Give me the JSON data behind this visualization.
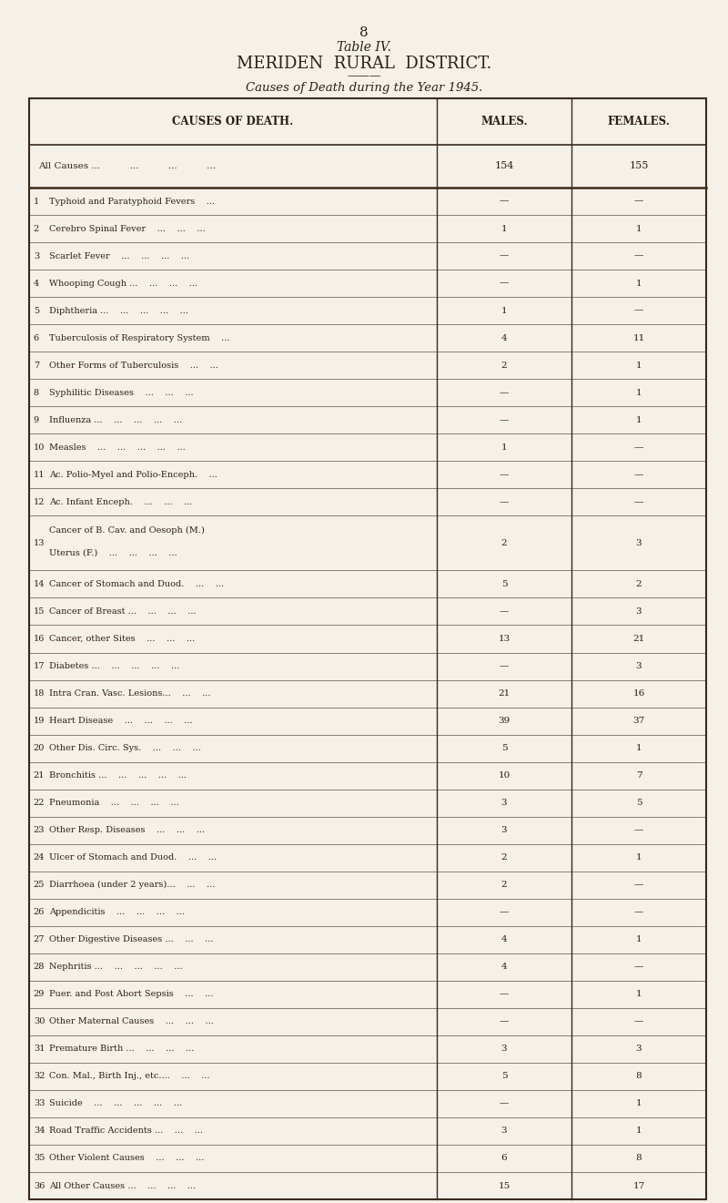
{
  "page_number": "8",
  "title_line1": "Table IV.",
  "title_line2": "MERIDEN  RURAL  DISTRICT.",
  "title_line3": "Causes of Death during the Year 1945.",
  "col_headers": [
    "CAUSES OF DEATH.",
    "MALES.",
    "FEMALES."
  ],
  "all_causes_label": "All Causes ...          ...          ...          ...",
  "all_causes_males": "154",
  "all_causes_females": "155",
  "rows": [
    {
      "num": "1",
      "cause": "Typhoid and Paratyphoid Fevers    ...",
      "males": "—",
      "females": "—"
    },
    {
      "num": "2",
      "cause": "Cerebro Spinal Fever    ...    ...    ...",
      "males": "1",
      "females": "1"
    },
    {
      "num": "3",
      "cause": "Scarlet Fever    ...    ...    ...    ...",
      "males": "—",
      "females": "—"
    },
    {
      "num": "4",
      "cause": "Whooping Cough ...    ...    ...    ...",
      "males": "—",
      "females": "1"
    },
    {
      "num": "5",
      "cause": "Diphtheria ...    ...    ...    ...    ...",
      "males": "1",
      "females": "—"
    },
    {
      "num": "6",
      "cause": "Tuberculosis of Respiratory System    ...",
      "males": "4",
      "females": "11"
    },
    {
      "num": "7",
      "cause": "Other Forms of Tuberculosis    ...    ...",
      "males": "2",
      "females": "1"
    },
    {
      "num": "8",
      "cause": "Syphilitic Diseases    ...    ...    ...",
      "males": "—",
      "females": "1"
    },
    {
      "num": "9",
      "cause": "Influenza ...    ...    ...    ...    ...",
      "males": "—",
      "females": "1"
    },
    {
      "num": "10",
      "cause": "Measles    ...    ...    ...    ...    ...",
      "males": "1",
      "females": "—"
    },
    {
      "num": "11",
      "cause": "Ac. Polio-Myel and Polio-Enceph.    ...",
      "males": "—",
      "females": "—"
    },
    {
      "num": "12",
      "cause": "Ac. Infant Enceph.    ...    ...    ...",
      "males": "—",
      "females": "—"
    },
    {
      "num": "13",
      "cause": "Cancer of B. Cav. and Oesoph (M.)\nUterus (F.)    ...    ...    ...    ...",
      "males": "2",
      "females": "3"
    },
    {
      "num": "14",
      "cause": "Cancer of Stomach and Duod.    ...    ...",
      "males": "5",
      "females": "2"
    },
    {
      "num": "15",
      "cause": "Cancer of Breast ...    ...    ...    ...",
      "males": "—",
      "females": "3"
    },
    {
      "num": "16",
      "cause": "Cancer, other Sites    ...    ...    ...",
      "males": "13",
      "females": "21"
    },
    {
      "num": "17",
      "cause": "Diabetes ...    ...    ...    ...    ...",
      "males": "—",
      "females": "3"
    },
    {
      "num": "18",
      "cause": "Intra Cran. Vasc. Lesions...    ...    ...",
      "males": "21",
      "females": "16"
    },
    {
      "num": "19",
      "cause": "Heart Disease    ...    ...    ...    ...",
      "males": "39",
      "females": "37"
    },
    {
      "num": "20",
      "cause": "Other Dis. Circ. Sys.    ...    ...    ...",
      "males": "5",
      "females": "1"
    },
    {
      "num": "21",
      "cause": "Bronchitis ...    ...    ...    ...    ...",
      "males": "10",
      "females": "7"
    },
    {
      "num": "22",
      "cause": "Pneumonia    ...    ...    ...    ...",
      "males": "3",
      "females": "5"
    },
    {
      "num": "23",
      "cause": "Other Resp. Diseases    ...    ...    ...",
      "males": "3",
      "females": "—"
    },
    {
      "num": "24",
      "cause": "Ulcer of Stomach and Duod.    ...    ...",
      "males": "2",
      "females": "1"
    },
    {
      "num": "25",
      "cause": "Diarrhoea (under 2 years)...    ...    ...",
      "males": "2",
      "females": "—"
    },
    {
      "num": "26",
      "cause": "Appendicitis    ...    ...    ...    ...",
      "males": "—",
      "females": "—"
    },
    {
      "num": "27",
      "cause": "Other Digestive Diseases ...    ...    ...",
      "males": "4",
      "females": "1"
    },
    {
      "num": "28",
      "cause": "Nephritis ...    ...    ...    ...    ...",
      "males": "4",
      "females": "—"
    },
    {
      "num": "29",
      "cause": "Puer. and Post Abort Sepsis    ...    ...",
      "males": "—",
      "females": "1"
    },
    {
      "num": "30",
      "cause": "Other Maternal Causes    ...    ...    ...",
      "males": "—",
      "females": "—"
    },
    {
      "num": "31",
      "cause": "Premature Birth ...    ...    ...    ...",
      "males": "3",
      "females": "3"
    },
    {
      "num": "32",
      "cause": "Con. Mal., Birth Inj., etc....    ...    ...",
      "males": "5",
      "females": "8"
    },
    {
      "num": "33",
      "cause": "Suicide    ...    ...    ...    ...    ...",
      "males": "—",
      "females": "1"
    },
    {
      "num": "34",
      "cause": "Road Traffic Accidents ...    ...    ...",
      "males": "3",
      "females": "1"
    },
    {
      "num": "35",
      "cause": "Other Violent Causes    ...    ...    ...",
      "males": "6",
      "females": "8"
    },
    {
      "num": "36",
      "cause": "All Other Causes ...    ...    ...    ...",
      "males": "15",
      "females": "17"
    }
  ],
  "bg_color": "#f5f0e8",
  "text_color": "#2a2018",
  "line_color": "#3a2a1a"
}
